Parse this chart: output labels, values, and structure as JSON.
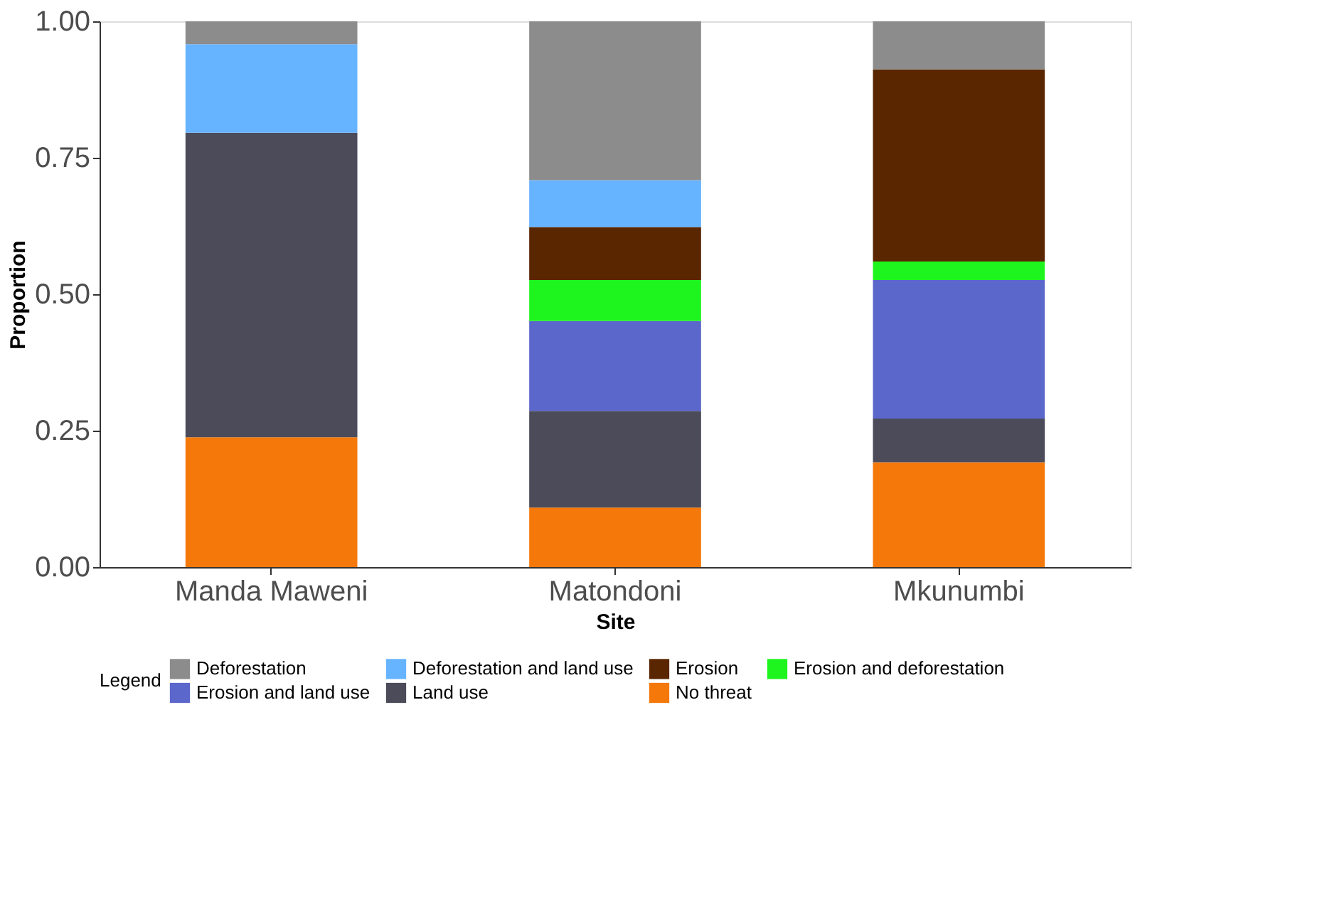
{
  "chart_data": {
    "type": "bar",
    "stacked": true,
    "xlabel": "Site",
    "ylabel": "Proportion",
    "legend_title": "Legend",
    "legend": "bottom",
    "grid": false,
    "categories": [
      "Manda Maweni",
      "Matondoni",
      "Mkunumbi"
    ],
    "ylim": [
      0,
      1
    ],
    "yticks": [
      {
        "value": 0,
        "label": "0.00"
      },
      {
        "value": 0.25,
        "label": "0.25"
      },
      {
        "value": 0.5,
        "label": "0.50"
      },
      {
        "value": 0.75,
        "label": "0.75"
      },
      {
        "value": 1,
        "label": "1.00"
      }
    ],
    "series": [
      {
        "name": "No threat",
        "color": "#f5780a",
        "values": [
          0.238,
          0.109,
          0.192
        ]
      },
      {
        "name": "Land use",
        "color": "#4b4b5a",
        "values": [
          0.558,
          0.177,
          0.08
        ]
      },
      {
        "name": "Erosion and land use",
        "color": "#5c67cc",
        "values": [
          0,
          0.165,
          0.254
        ]
      },
      {
        "name": "Erosion and deforestation",
        "color": "#1ef51e",
        "values": [
          0,
          0.075,
          0.034
        ]
      },
      {
        "name": "Erosion",
        "color": "#5a2600",
        "values": [
          0,
          0.097,
          0.352
        ]
      },
      {
        "name": "Deforestation and land use",
        "color": "#66b3ff",
        "values": [
          0.162,
          0.086,
          0
        ]
      },
      {
        "name": "Deforestation",
        "color": "#8c8c8c",
        "values": [
          0.042,
          0.291,
          0.088
        ]
      }
    ]
  }
}
